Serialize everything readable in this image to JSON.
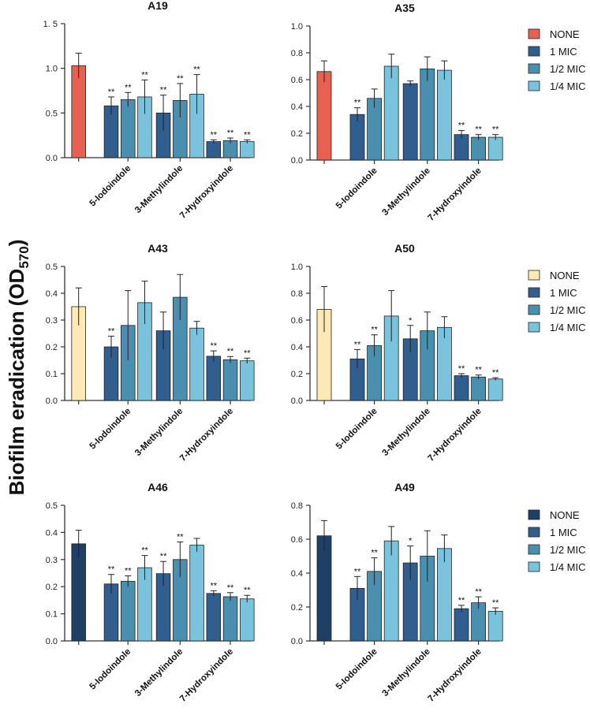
{
  "figure": {
    "ylabel": "Biofilm eradication",
    "ylabel_od": "(OD",
    "ylabel_sub": "570",
    "ylabel_close": ")"
  },
  "colors": {
    "none_red": "#e8604f",
    "none_yellow": "#fde9b4",
    "none_navy": "#203f65",
    "mic_1": "#2f5e8f",
    "mic_half": "#4b8fb0",
    "mic_quarter": "#79c3dd",
    "axis": "#333333"
  },
  "chart_data": [
    {
      "id": "A19",
      "type": "bar",
      "title": "A19",
      "ylim": [
        0,
        1.5
      ],
      "ticks": [
        0,
        0.5,
        1.0,
        1.5
      ],
      "tick_labels": [
        "0.0",
        "0.5",
        "1.0",
        "1. 5"
      ],
      "groups": [
        "5-Iodoindole",
        "3-Methylindole",
        "7-Hydroxyindole"
      ],
      "none_color": "none_red",
      "legend": [
        "NONE",
        "1 MIC",
        "1/2 MIC",
        "1/4 MIC"
      ],
      "none": {
        "value": 1.03,
        "err": 0.14,
        "sig": ""
      },
      "series": [
        {
          "name": "1 MIC",
          "values": [
            0.58,
            0.5,
            0.18
          ],
          "errors": [
            0.1,
            0.2,
            0.02
          ],
          "sig": [
            "**",
            "**",
            "**"
          ]
        },
        {
          "name": "1/2 MIC",
          "values": [
            0.65,
            0.64,
            0.19
          ],
          "errors": [
            0.08,
            0.19,
            0.03
          ],
          "sig": [
            "**",
            "**",
            "**"
          ]
        },
        {
          "name": "1/4 MIC",
          "values": [
            0.68,
            0.71,
            0.18
          ],
          "errors": [
            0.19,
            0.22,
            0.02
          ],
          "sig": [
            "**",
            "**",
            "**"
          ]
        }
      ]
    },
    {
      "id": "A35",
      "type": "bar",
      "title": "A35",
      "ylim": [
        0,
        1.0
      ],
      "ticks": [
        0,
        0.2,
        0.4,
        0.6,
        0.8,
        1.0
      ],
      "tick_labels": [
        "0.0",
        "0.2",
        "0.4",
        "0.6",
        "0.8",
        "1.0"
      ],
      "groups": [
        "5-Iodoindole",
        "3-Methylindole",
        "7-Hydroxyindole"
      ],
      "none_color": "none_red",
      "legend": [
        "NONE",
        "1 MIC",
        "1/2 MIC",
        "1/4 MIC"
      ],
      "none": {
        "value": 0.66,
        "err": 0.08,
        "sig": ""
      },
      "series": [
        {
          "name": "1 MIC",
          "values": [
            0.34,
            0.57,
            0.19
          ],
          "errors": [
            0.05,
            0.02,
            0.03
          ],
          "sig": [
            "**",
            "",
            "**"
          ]
        },
        {
          "name": "1/2 MIC",
          "values": [
            0.46,
            0.68,
            0.17
          ],
          "errors": [
            0.07,
            0.09,
            0.02
          ],
          "sig": [
            "",
            "",
            "**"
          ]
        },
        {
          "name": "1/4 MIC",
          "values": [
            0.7,
            0.67,
            0.17
          ],
          "errors": [
            0.09,
            0.07,
            0.02
          ],
          "sig": [
            "",
            "",
            "**"
          ]
        }
      ]
    },
    {
      "id": "A43",
      "type": "bar",
      "title": "A43",
      "ylim": [
        0,
        0.5
      ],
      "ticks": [
        0,
        0.1,
        0.2,
        0.3,
        0.4,
        0.5
      ],
      "tick_labels": [
        "0.0",
        "0.1",
        "0.2",
        "0.3",
        "0.4",
        "0.5"
      ],
      "groups": [
        "5-Iodoindole",
        "3-Methylindole",
        "7-Hydroxyindole"
      ],
      "none_color": "none_yellow",
      "legend": [
        "NONE",
        "1 MIC",
        "1/2 MIC",
        "1/4 MIC"
      ],
      "none": {
        "value": 0.35,
        "err": 0.07,
        "sig": ""
      },
      "series": [
        {
          "name": "1 MIC",
          "values": [
            0.2,
            0.26,
            0.165
          ],
          "errors": [
            0.04,
            0.07,
            0.02
          ],
          "sig": [
            "**",
            "",
            "**"
          ]
        },
        {
          "name": "1/2 MIC",
          "values": [
            0.28,
            0.385,
            0.152
          ],
          "errors": [
            0.13,
            0.085,
            0.012
          ],
          "sig": [
            "",
            "",
            "**"
          ]
        },
        {
          "name": "1/4 MIC",
          "values": [
            0.365,
            0.27,
            0.148
          ],
          "errors": [
            0.08,
            0.025,
            0.01
          ],
          "sig": [
            "",
            "",
            "**"
          ]
        }
      ]
    },
    {
      "id": "A50",
      "type": "bar",
      "title": "A50",
      "ylim": [
        0,
        1.0
      ],
      "ticks": [
        0,
        0.2,
        0.4,
        0.6,
        0.8,
        1.0
      ],
      "tick_labels": [
        "0.0",
        "0.2",
        "0.4",
        "0.6",
        "0.8",
        "1.0"
      ],
      "groups": [
        "5-Iodoindole",
        "3-Methylindole",
        "7-Hydroxyindole"
      ],
      "none_color": "none_yellow",
      "legend": [
        "NONE",
        "1 MIC",
        "1/2 MIC",
        "1/4 MIC"
      ],
      "none": {
        "value": 0.68,
        "err": 0.17,
        "sig": ""
      },
      "series": [
        {
          "name": "1 MIC",
          "values": [
            0.31,
            0.46,
            0.185
          ],
          "errors": [
            0.07,
            0.1,
            0.015
          ],
          "sig": [
            "**",
            "*",
            "**"
          ]
        },
        {
          "name": "1/2 MIC",
          "values": [
            0.41,
            0.52,
            0.175
          ],
          "errors": [
            0.08,
            0.14,
            0.015
          ],
          "sig": [
            "**",
            "",
            "**"
          ]
        },
        {
          "name": "1/4 MIC",
          "values": [
            0.63,
            0.545,
            0.16
          ],
          "errors": [
            0.19,
            0.08,
            0.01
          ],
          "sig": [
            "",
            "",
            "**"
          ]
        }
      ]
    },
    {
      "id": "A46",
      "type": "bar",
      "title": "A46",
      "ylim": [
        0,
        0.5
      ],
      "ticks": [
        0,
        0.1,
        0.2,
        0.3,
        0.4,
        0.5
      ],
      "tick_labels": [
        "0.0",
        "0.1",
        "0.2",
        "0.3",
        "0.4",
        "0.5"
      ],
      "groups": [
        "5-Iodoindole",
        "3-Methylindole",
        "7-Hydroxyindole"
      ],
      "none_color": "none_navy",
      "legend": [
        "NONE",
        "1 MIC",
        "1/2 MIC",
        "1/4 MIC"
      ],
      "none": {
        "value": 0.358,
        "err": 0.05,
        "sig": ""
      },
      "series": [
        {
          "name": "1 MIC",
          "values": [
            0.21,
            0.248,
            0.175
          ],
          "errors": [
            0.035,
            0.045,
            0.01
          ],
          "sig": [
            "**",
            "**",
            "**"
          ]
        },
        {
          "name": "1/2 MIC",
          "values": [
            0.22,
            0.3,
            0.163
          ],
          "errors": [
            0.02,
            0.065,
            0.015
          ],
          "sig": [
            "**",
            "**",
            "**"
          ]
        },
        {
          "name": "1/4 MIC",
          "values": [
            0.27,
            0.353,
            0.155
          ],
          "errors": [
            0.045,
            0.025,
            0.013
          ],
          "sig": [
            "**",
            "",
            "**"
          ]
        }
      ]
    },
    {
      "id": "A49",
      "type": "bar",
      "title": "A49",
      "ylim": [
        0,
        0.8
      ],
      "ticks": [
        0,
        0.2,
        0.4,
        0.6,
        0.8
      ],
      "tick_labels": [
        "0.0",
        "0.2",
        "0.4",
        "0.6",
        "0.8"
      ],
      "groups": [
        "5-Iodoindole",
        "3-Methylindole",
        "7-Hydroxyindole"
      ],
      "none_color": "none_navy",
      "legend": [
        "NONE",
        "1 MIC",
        "1/2 MIC",
        "1/4 MIC"
      ],
      "none": {
        "value": 0.62,
        "err": 0.09,
        "sig": ""
      },
      "series": [
        {
          "name": "1 MIC",
          "values": [
            0.31,
            0.46,
            0.19
          ],
          "errors": [
            0.07,
            0.1,
            0.02
          ],
          "sig": [
            "**",
            "*",
            "**"
          ]
        },
        {
          "name": "1/2 MIC",
          "values": [
            0.41,
            0.5,
            0.225
          ],
          "errors": [
            0.08,
            0.15,
            0.035
          ],
          "sig": [
            "**",
            "",
            "**"
          ]
        },
        {
          "name": "1/4 MIC",
          "values": [
            0.59,
            0.545,
            0.175
          ],
          "errors": [
            0.085,
            0.08,
            0.02
          ],
          "sig": [
            "",
            "",
            "**"
          ]
        }
      ]
    }
  ]
}
